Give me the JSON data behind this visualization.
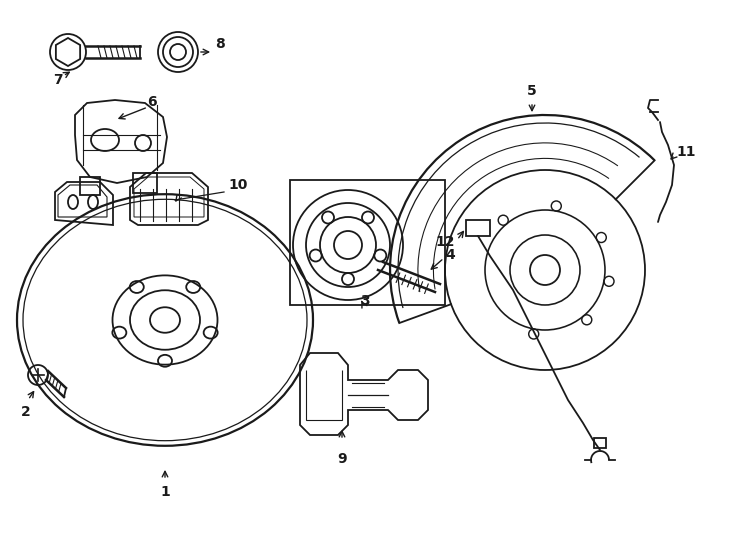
{
  "background_color": "#ffffff",
  "line_color": "#1a1a1a",
  "figure_width": 7.34,
  "figure_height": 5.4,
  "dpi": 100
}
